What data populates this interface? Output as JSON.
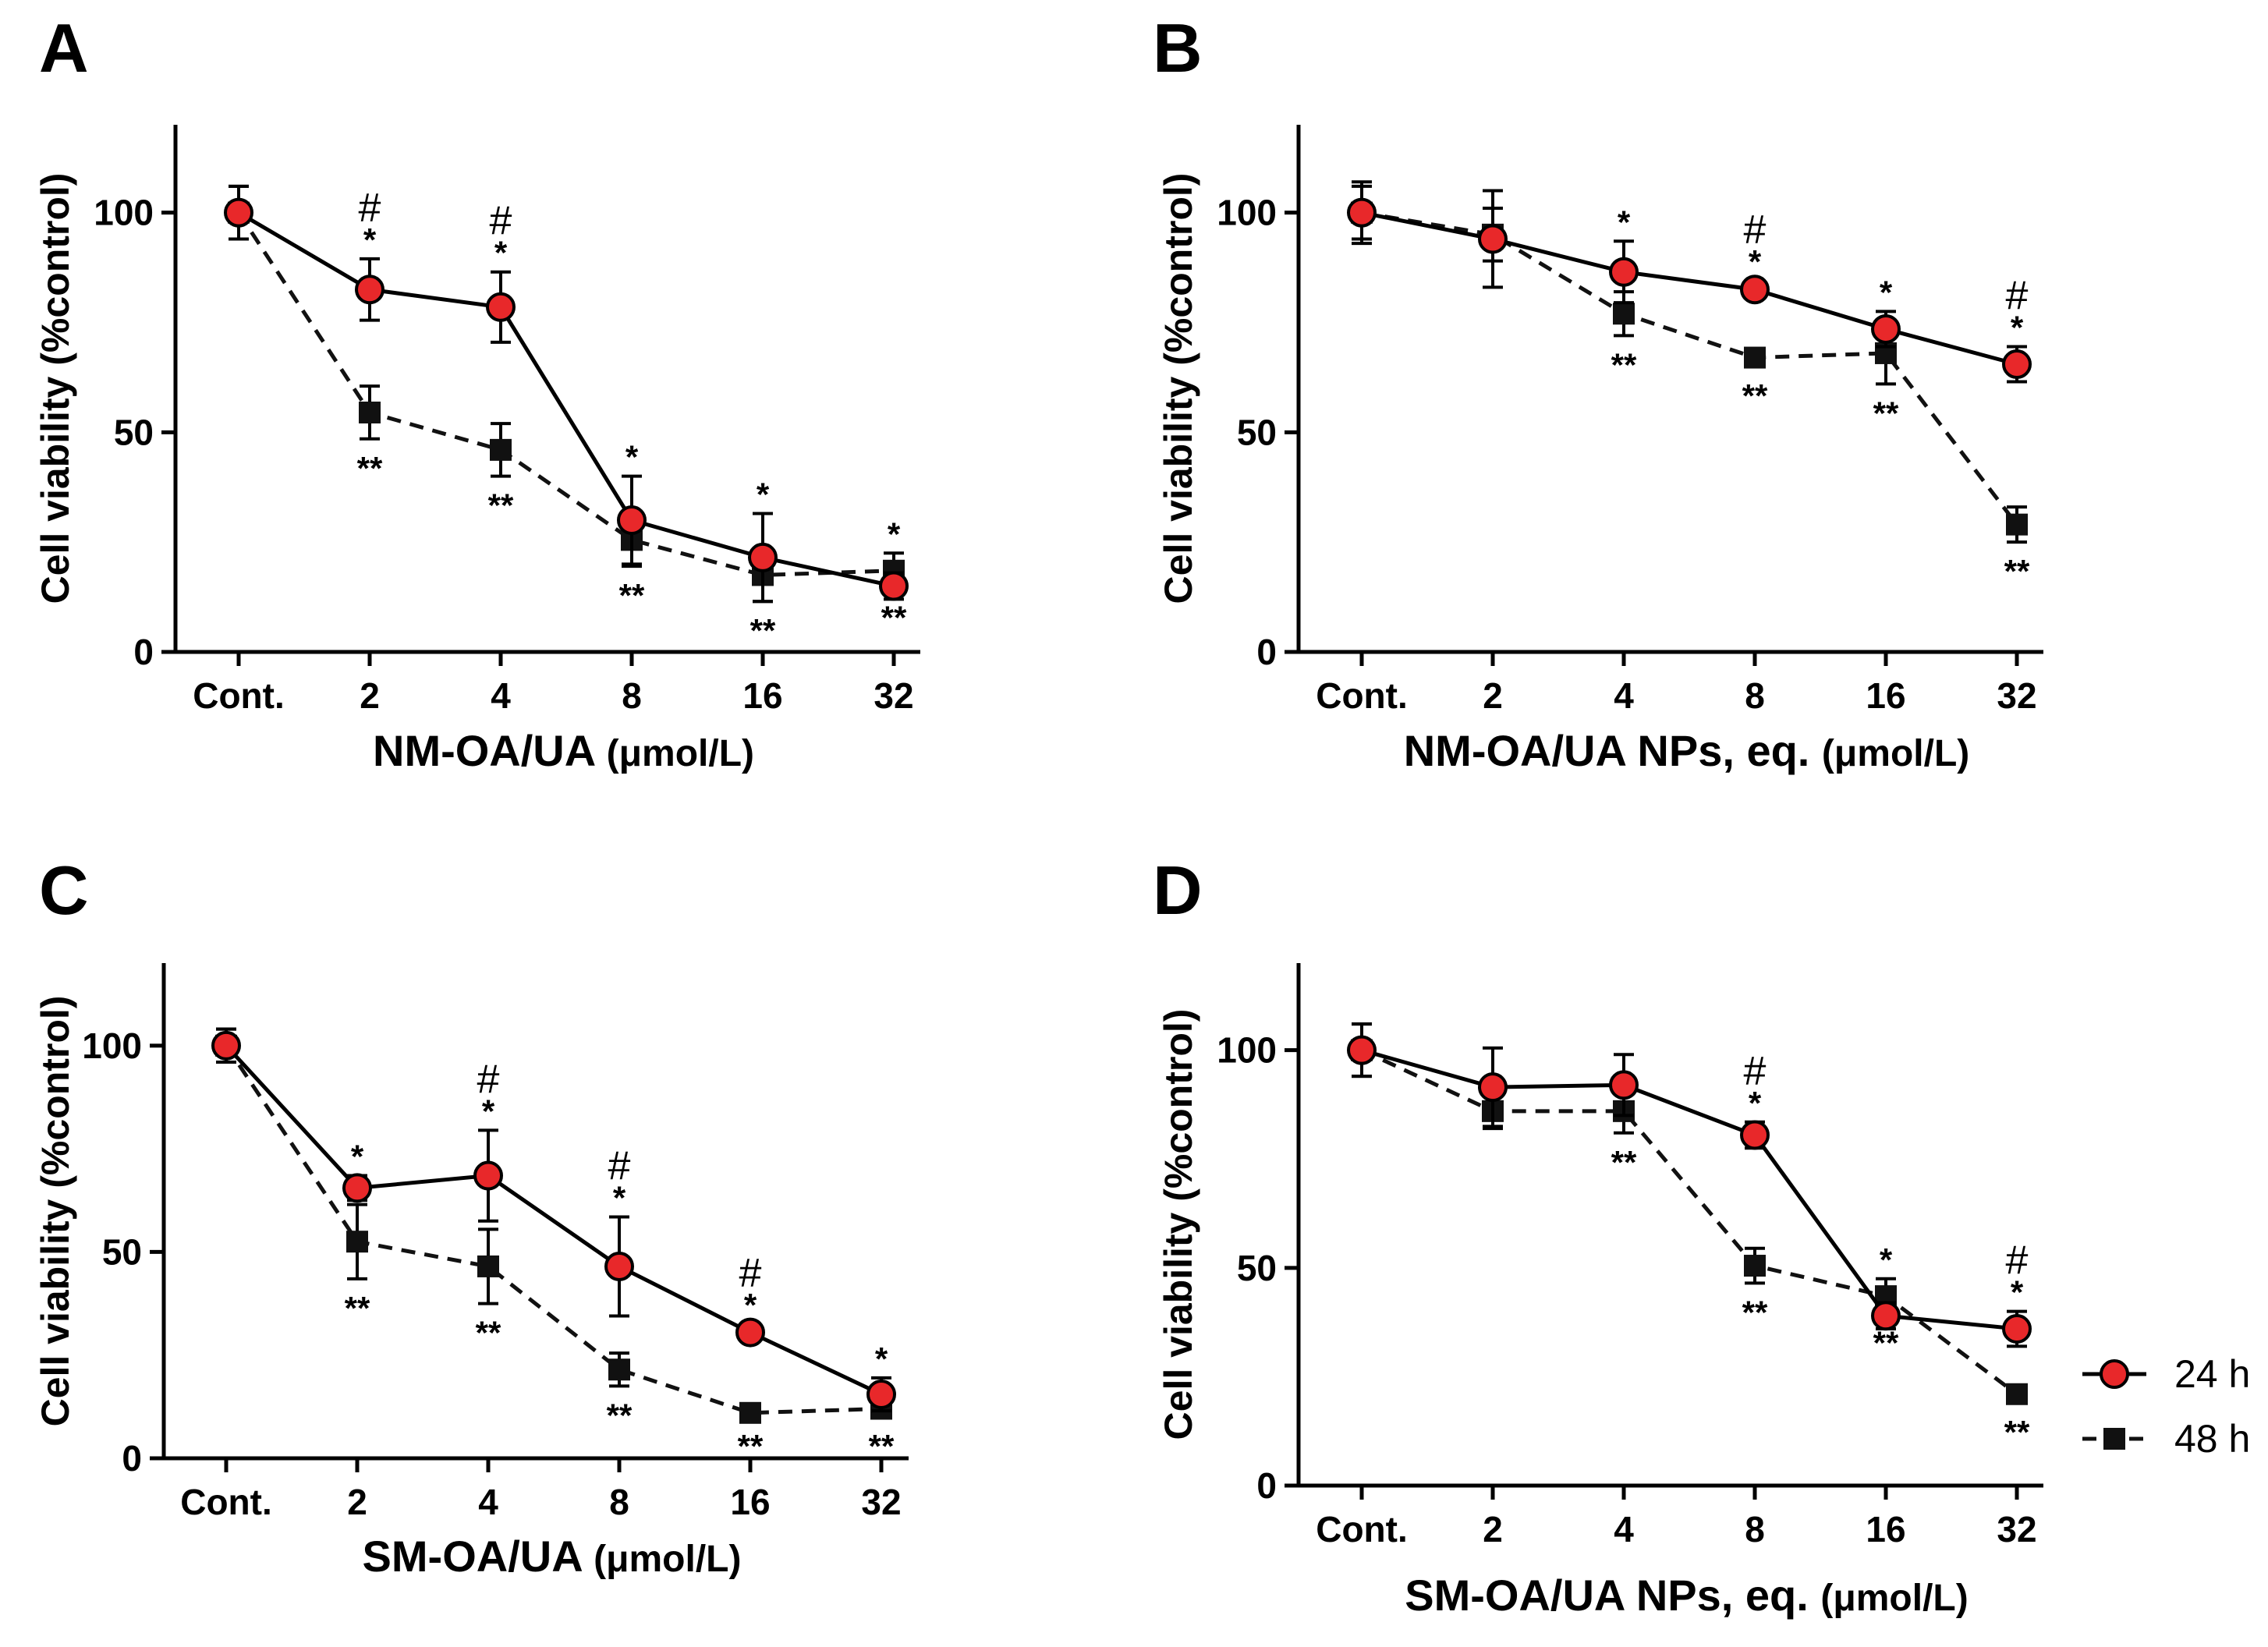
{
  "colors": {
    "s24": "#e8282a",
    "s48": "#111111",
    "axis": "#000000"
  },
  "legend": {
    "items": [
      {
        "label": "24 h",
        "marker": "circle",
        "line": "solid",
        "color": "#e8282a"
      },
      {
        "label": "48 h",
        "marker": "square",
        "line": "dashed",
        "color": "#111111"
      }
    ]
  },
  "chart_data": [
    {
      "panel": "A",
      "type": "line",
      "title": "",
      "categories": [
        "Cont.",
        "2",
        "4",
        "8",
        "16",
        "32"
      ],
      "xlabel": "NM-OA/UA",
      "xunit": "(μmol/L)",
      "ylabel": "Cell viability (%control)",
      "ylim": [
        0,
        120
      ],
      "yticks": [
        0,
        50,
        100
      ],
      "series": [
        {
          "name": "24 h",
          "values": [
            100,
            82.5,
            78.5,
            30,
            21.5,
            15
          ],
          "errors": [
            6,
            7,
            8,
            10,
            10,
            3
          ]
        },
        {
          "name": "48 h",
          "values": [
            100,
            54.5,
            46,
            25.5,
            17.5,
            18.5
          ],
          "errors": [
            6,
            6,
            6,
            6,
            6,
            4
          ]
        }
      ],
      "annotations": {
        "hash": [
          "",
          "#",
          "#",
          "",
          "",
          ""
        ],
        "s24": [
          "",
          "*",
          "*",
          "*",
          "*",
          "*"
        ],
        "s48": [
          "",
          "**",
          "**",
          "**",
          "**",
          "**"
        ]
      }
    },
    {
      "panel": "B",
      "type": "line",
      "title": "",
      "categories": [
        "Cont.",
        "2",
        "4",
        "8",
        "16",
        "32"
      ],
      "xlabel": "NM-OA/UA NPs, eq.",
      "xunit": "(μmol/L)",
      "ylabel": "Cell viability (%control)",
      "ylim": [
        0,
        120
      ],
      "yticks": [
        0,
        50,
        100
      ],
      "series": [
        {
          "name": "24 h",
          "values": [
            100,
            94,
            86.5,
            82.5,
            73.5,
            65.5
          ],
          "errors": [
            7,
            11,
            7,
            2,
            4,
            4
          ]
        },
        {
          "name": "48 h",
          "values": [
            100,
            95,
            77,
            67,
            68,
            29
          ],
          "errors": [
            6,
            6,
            5,
            2,
            7,
            4
          ]
        }
      ],
      "annotations": {
        "hash": [
          "",
          "",
          "",
          "#",
          "",
          "#"
        ],
        "s24": [
          "",
          "",
          "*",
          "*",
          "*",
          "*"
        ],
        "s48": [
          "",
          "",
          "**",
          "**",
          "**",
          "**"
        ]
      }
    },
    {
      "panel": "C",
      "type": "line",
      "title": "",
      "categories": [
        "Cont.",
        "2",
        "4",
        "8",
        "16",
        "32"
      ],
      "xlabel": "SM-OA/UA",
      "xunit": "(μmol/L)",
      "ylabel": "Cell viability (%control)",
      "ylim": [
        0,
        120
      ],
      "yticks": [
        0,
        50,
        100
      ],
      "series": [
        {
          "name": "24 h",
          "values": [
            100,
            65.5,
            68.5,
            46.5,
            30.5,
            15.5
          ],
          "errors": [
            4,
            3,
            11,
            12,
            2,
            4
          ]
        },
        {
          "name": "48 h",
          "values": [
            100,
            52.5,
            46.5,
            21.5,
            11,
            12
          ],
          "errors": [
            4,
            9,
            9,
            4,
            1,
            2
          ]
        }
      ],
      "annotations": {
        "hash": [
          "",
          "",
          "#",
          "#",
          "#",
          ""
        ],
        "s24": [
          "",
          "*",
          "*",
          "*",
          "*",
          "*"
        ],
        "s48": [
          "",
          "**",
          "**",
          "**",
          "**",
          "**"
        ]
      }
    },
    {
      "panel": "D",
      "type": "line",
      "title": "",
      "categories": [
        "Cont.",
        "2",
        "4",
        "8",
        "16",
        "32"
      ],
      "xlabel": "SM-OA/UA NPs, eq.",
      "xunit": "(μmol/L)",
      "ylabel": "Cell viability (%control)",
      "ylim": [
        0,
        120
      ],
      "yticks": [
        0,
        50,
        100
      ],
      "series": [
        {
          "name": "24 h",
          "values": [
            100,
            91.5,
            92,
            80.5,
            39,
            36
          ],
          "errors": [
            6,
            9,
            7,
            3,
            3,
            4
          ]
        },
        {
          "name": "48 h",
          "values": [
            100,
            86,
            86,
            50.5,
            43.5,
            21
          ],
          "errors": [
            6,
            4,
            5,
            4,
            4,
            2
          ]
        }
      ],
      "annotations": {
        "hash": [
          "",
          "",
          "",
          "#",
          "",
          "#"
        ],
        "s24": [
          "",
          "",
          "",
          "*",
          "*",
          "*"
        ],
        "s48": [
          "",
          "",
          "**",
          "**",
          "**",
          "**"
        ]
      }
    }
  ]
}
